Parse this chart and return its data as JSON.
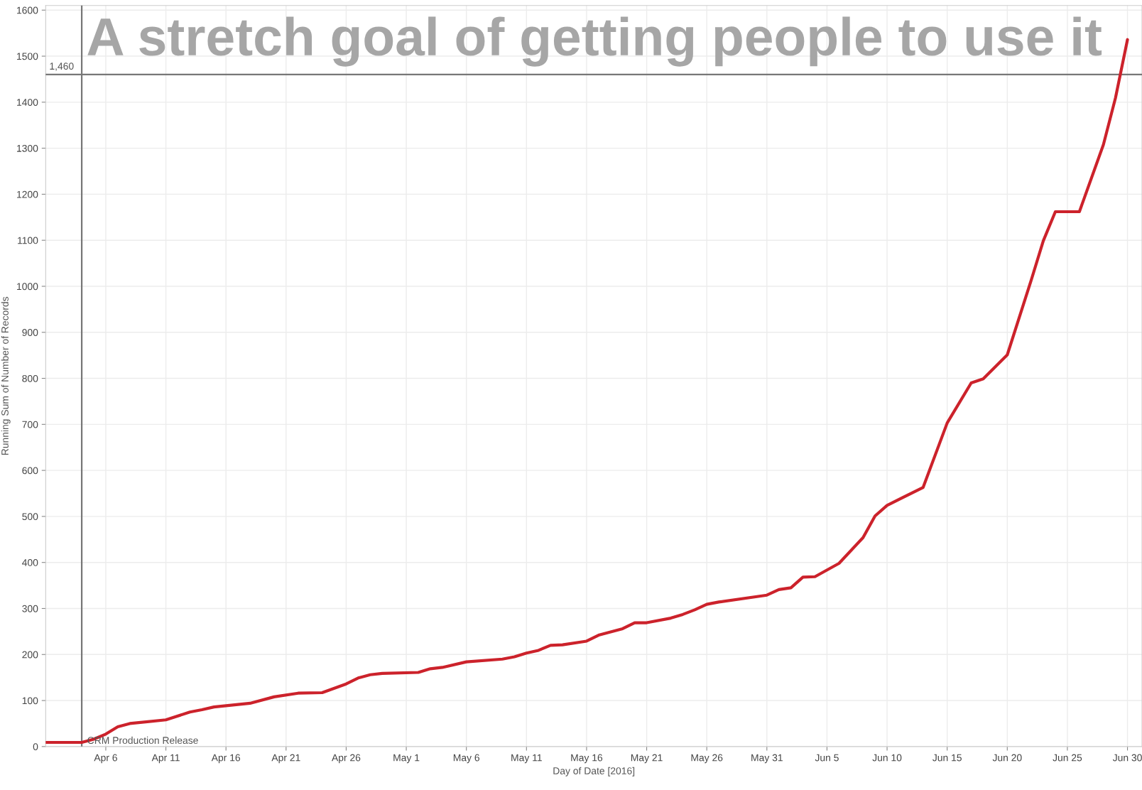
{
  "chart_data": {
    "type": "line",
    "title": "A stretch goal of getting people to use it",
    "xlabel": "Day of Date [2016]",
    "ylabel": "Running Sum of Number of Records",
    "x": [
      "2016-04-01",
      "2016-04-04",
      "2016-04-05",
      "2016-04-06",
      "2016-04-07",
      "2016-04-08",
      "2016-04-11",
      "2016-04-13",
      "2016-04-14",
      "2016-04-15",
      "2016-04-18",
      "2016-04-20",
      "2016-04-22",
      "2016-04-24",
      "2016-04-26",
      "2016-04-27",
      "2016-04-28",
      "2016-04-29",
      "2016-05-02",
      "2016-05-03",
      "2016-05-04",
      "2016-05-06",
      "2016-05-09",
      "2016-05-10",
      "2016-05-11",
      "2016-05-12",
      "2016-05-13",
      "2016-05-14",
      "2016-05-16",
      "2016-05-17",
      "2016-05-19",
      "2016-05-20",
      "2016-05-21",
      "2016-05-23",
      "2016-05-24",
      "2016-05-25",
      "2016-05-26",
      "2016-05-27",
      "2016-05-31",
      "2016-06-01",
      "2016-06-02",
      "2016-06-03",
      "2016-06-04",
      "2016-06-06",
      "2016-06-08",
      "2016-06-09",
      "2016-06-10",
      "2016-06-13",
      "2016-06-15",
      "2016-06-17",
      "2016-06-18",
      "2016-06-20",
      "2016-06-22",
      "2016-06-23",
      "2016-06-24",
      "2016-06-26",
      "2016-06-28",
      "2016-06-29",
      "2016-06-30"
    ],
    "series": [
      {
        "values": [
          9,
          9,
          16,
          27,
          43,
          50,
          58,
          75,
          80,
          86,
          94,
          108,
          116,
          117,
          136,
          149,
          156,
          159,
          161,
          169,
          172,
          184,
          190,
          195,
          203,
          209,
          220,
          221,
          229,
          242,
          256,
          269,
          269,
          279,
          287,
          297,
          309,
          314,
          329,
          341,
          345,
          368,
          369,
          398,
          454,
          501,
          524,
          563,
          703,
          790,
          799,
          851,
          1014,
          1099,
          1162,
          1162,
          1308,
          1409,
          1536
        ],
        "color": "#cc222b"
      }
    ],
    "xlim": [
      "2016-04-01",
      "2016-07-01T05:00"
    ],
    "ylim": [
      0,
      1610
    ],
    "xticks": [
      {
        "value": "2016-04-06",
        "label": "Apr 6"
      },
      {
        "value": "2016-04-11",
        "label": "Apr 11"
      },
      {
        "value": "2016-04-16",
        "label": "Apr 16"
      },
      {
        "value": "2016-04-21",
        "label": "Apr 21"
      },
      {
        "value": "2016-04-26",
        "label": "Apr 26"
      },
      {
        "value": "2016-05-01",
        "label": "May 1"
      },
      {
        "value": "2016-05-06",
        "label": "May 6"
      },
      {
        "value": "2016-05-11",
        "label": "May 11"
      },
      {
        "value": "2016-05-16",
        "label": "May 16"
      },
      {
        "value": "2016-05-21",
        "label": "May 21"
      },
      {
        "value": "2016-05-26",
        "label": "May 26"
      },
      {
        "value": "2016-05-31",
        "label": "May 31"
      },
      {
        "value": "2016-06-05",
        "label": "Jun 5"
      },
      {
        "value": "2016-06-10",
        "label": "Jun 10"
      },
      {
        "value": "2016-06-15",
        "label": "Jun 15"
      },
      {
        "value": "2016-06-20",
        "label": "Jun 20"
      },
      {
        "value": "2016-06-25",
        "label": "Jun 25"
      },
      {
        "value": "2016-06-30",
        "label": "Jun 30"
      }
    ],
    "yticks": [
      0,
      100,
      200,
      300,
      400,
      500,
      600,
      700,
      800,
      900,
      1000,
      1100,
      1200,
      1300,
      1400,
      1500,
      1600
    ],
    "ref_lines": [
      {
        "axis": "x",
        "value": "2016-04-04",
        "label": "CRM Production Release",
        "color": "#777777"
      },
      {
        "axis": "y",
        "value": 1460,
        "label": "1,460",
        "color": "#777777"
      }
    ],
    "grid": true,
    "legend": false
  }
}
